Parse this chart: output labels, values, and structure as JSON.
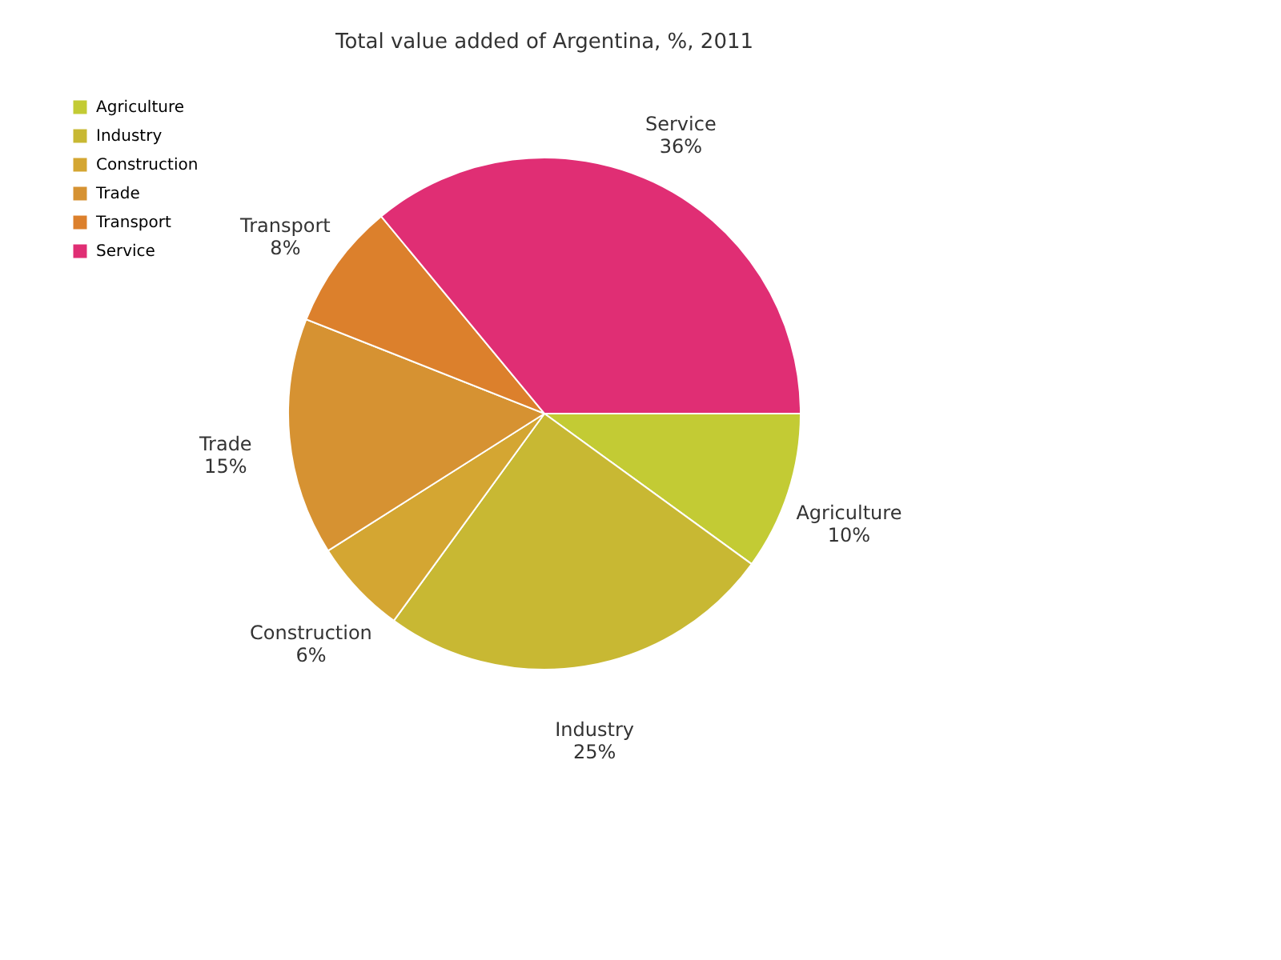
{
  "chart_data": {
    "type": "pie",
    "title": "Total value added of Argentina, %, 2011",
    "categories": [
      "Agriculture",
      "Industry",
      "Construction",
      "Trade",
      "Transport",
      "Service"
    ],
    "values": [
      10,
      25,
      6,
      15,
      8,
      36
    ],
    "value_labels": [
      "10%",
      "25%",
      "6%",
      "15%",
      "8%",
      "36%"
    ],
    "colors": [
      "#c3cb34",
      "#c8b833",
      "#d4a632",
      "#d69232",
      "#dc802c",
      "#e02e74"
    ],
    "legend": "top left"
  }
}
